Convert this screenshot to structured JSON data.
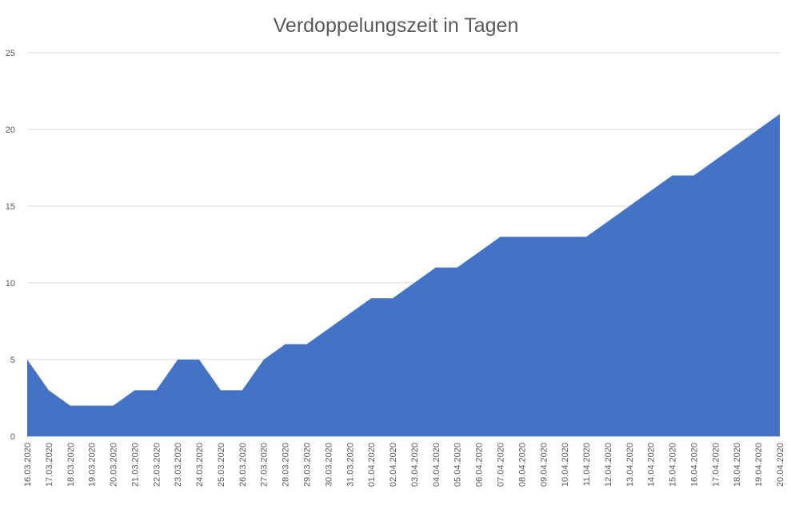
{
  "chart_data": {
    "type": "area",
    "title": "Verdoppelungszeit in Tagen",
    "xlabel": "",
    "ylabel": "",
    "ylim": [
      0,
      25
    ],
    "y_ticks": [
      0,
      5,
      10,
      15,
      20,
      25
    ],
    "grid": true,
    "legend": "none",
    "fill_color": "#4472c4",
    "categories": [
      "16.03.2020",
      "17.03.2020",
      "18.03.2020",
      "19.03.2020",
      "20.03.2020",
      "21.03.2020",
      "22.03.2020",
      "23.03.2020",
      "24.03.2020",
      "25.03.2020",
      "26.03.2020",
      "27.03.2020",
      "28.03.2020",
      "29.03.2020",
      "30.03.2020",
      "31.03.2020",
      "01.04.2020",
      "02.04.2020",
      "03.04.2020",
      "04.04.2020",
      "05.04.2020",
      "06.04.2020",
      "07.04.2020",
      "08.04.2020",
      "09.04.2020",
      "10.04.2020",
      "11.04.2020",
      "12.04.2020",
      "13.04.2020",
      "14.04.2020",
      "15.04.2020",
      "16.04.2020",
      "17.04.2020",
      "18.04.2020",
      "19.04.2020",
      "20.04.2020"
    ],
    "values": [
      5,
      3,
      2,
      2,
      2,
      3,
      3,
      5,
      5,
      3,
      3,
      5,
      6,
      6,
      7,
      8,
      9,
      9,
      10,
      11,
      11,
      12,
      13,
      13,
      13,
      13,
      13,
      14,
      15,
      16,
      17,
      17,
      18,
      19,
      20,
      21
    ]
  }
}
